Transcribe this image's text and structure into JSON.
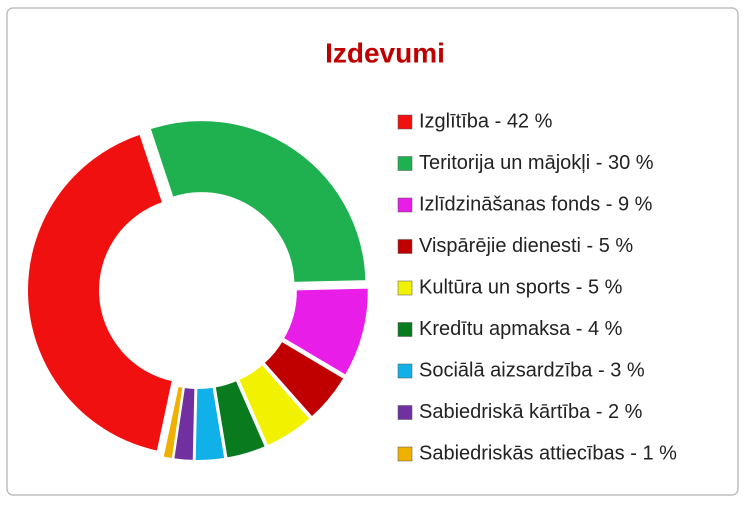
{
  "chart_data": {
    "type": "donut",
    "title": "Izdevumi",
    "categories": [
      "Izglītība - 42 %",
      "Teritorija un mājokļi - 30 %",
      "Izlīdzināšanas fonds - 9 %",
      "Vispārējie dienesti - 5 %",
      "Kultūra un sports - 5 %",
      "Kredītu apmaksa - 4 %",
      "Sociālā aizsardzība - 3 %",
      "Sabiedriskā kārtība - 2 %",
      "Sabiedriskās attiecības - 1 %"
    ],
    "values": [
      42,
      30,
      9,
      5,
      5,
      4,
      3,
      2,
      1
    ],
    "colors": [
      "#f01010",
      "#1fb050",
      "#e81ee8",
      "#c00000",
      "#f2f200",
      "#0a7a1e",
      "#10b0e8",
      "#7030a0",
      "#f0b000"
    ],
    "legend": "right"
  }
}
